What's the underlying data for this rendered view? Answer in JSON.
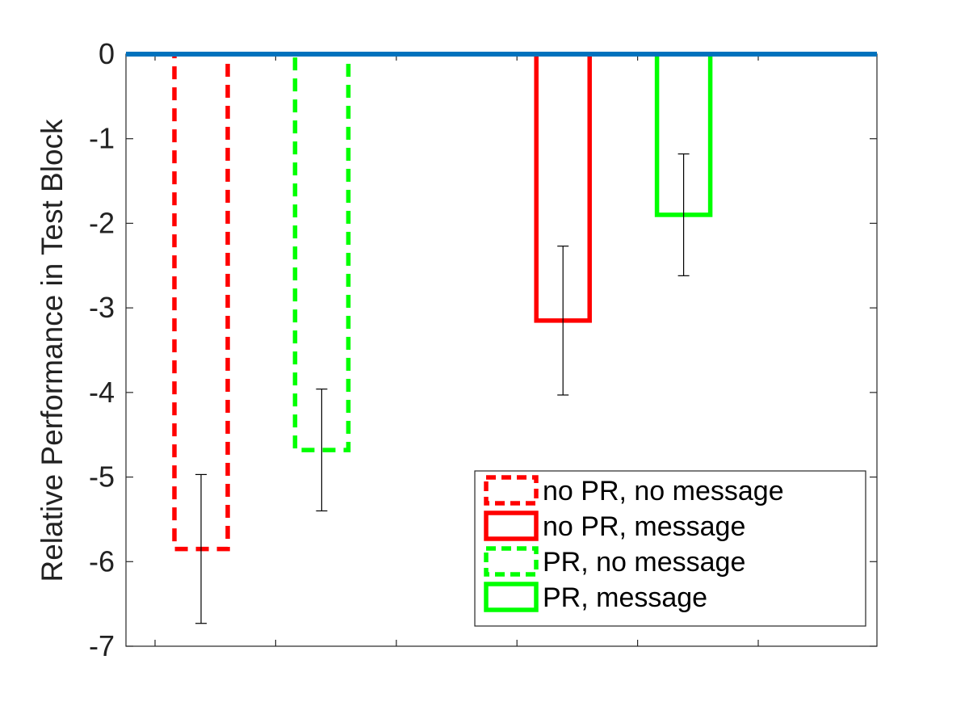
{
  "chart_data": {
    "type": "bar",
    "ylabel": "Relative Performance in Test Block",
    "xlabel": "",
    "title": "",
    "ylim": [
      -7,
      0
    ],
    "yticks": [
      0,
      -1,
      -2,
      -3,
      -4,
      -5,
      -6,
      -7
    ],
    "xtick_count": 6,
    "grid": false,
    "legend_position": "bottom-right",
    "baseline": {
      "value": 0,
      "color": "#0072BD"
    },
    "series": [
      {
        "name": "no PR, no message",
        "value": -5.85,
        "error": 0.88,
        "color": "#FF0000",
        "line_style": "dashed",
        "group": 1
      },
      {
        "name": "PR, no message",
        "value": -4.68,
        "error": 0.72,
        "color": "#00FF00",
        "line_style": "dashed",
        "group": 2
      },
      {
        "name": "no PR, message",
        "value": -3.15,
        "error": 0.88,
        "color": "#FF0000",
        "line_style": "solid",
        "group": 4
      },
      {
        "name": "PR, message",
        "value": -1.9,
        "error": 0.72,
        "color": "#00FF00",
        "line_style": "solid",
        "group": 5
      }
    ],
    "legend_order": [
      "no PR, no message",
      "no PR, message",
      "PR, no message",
      "PR, message"
    ]
  }
}
